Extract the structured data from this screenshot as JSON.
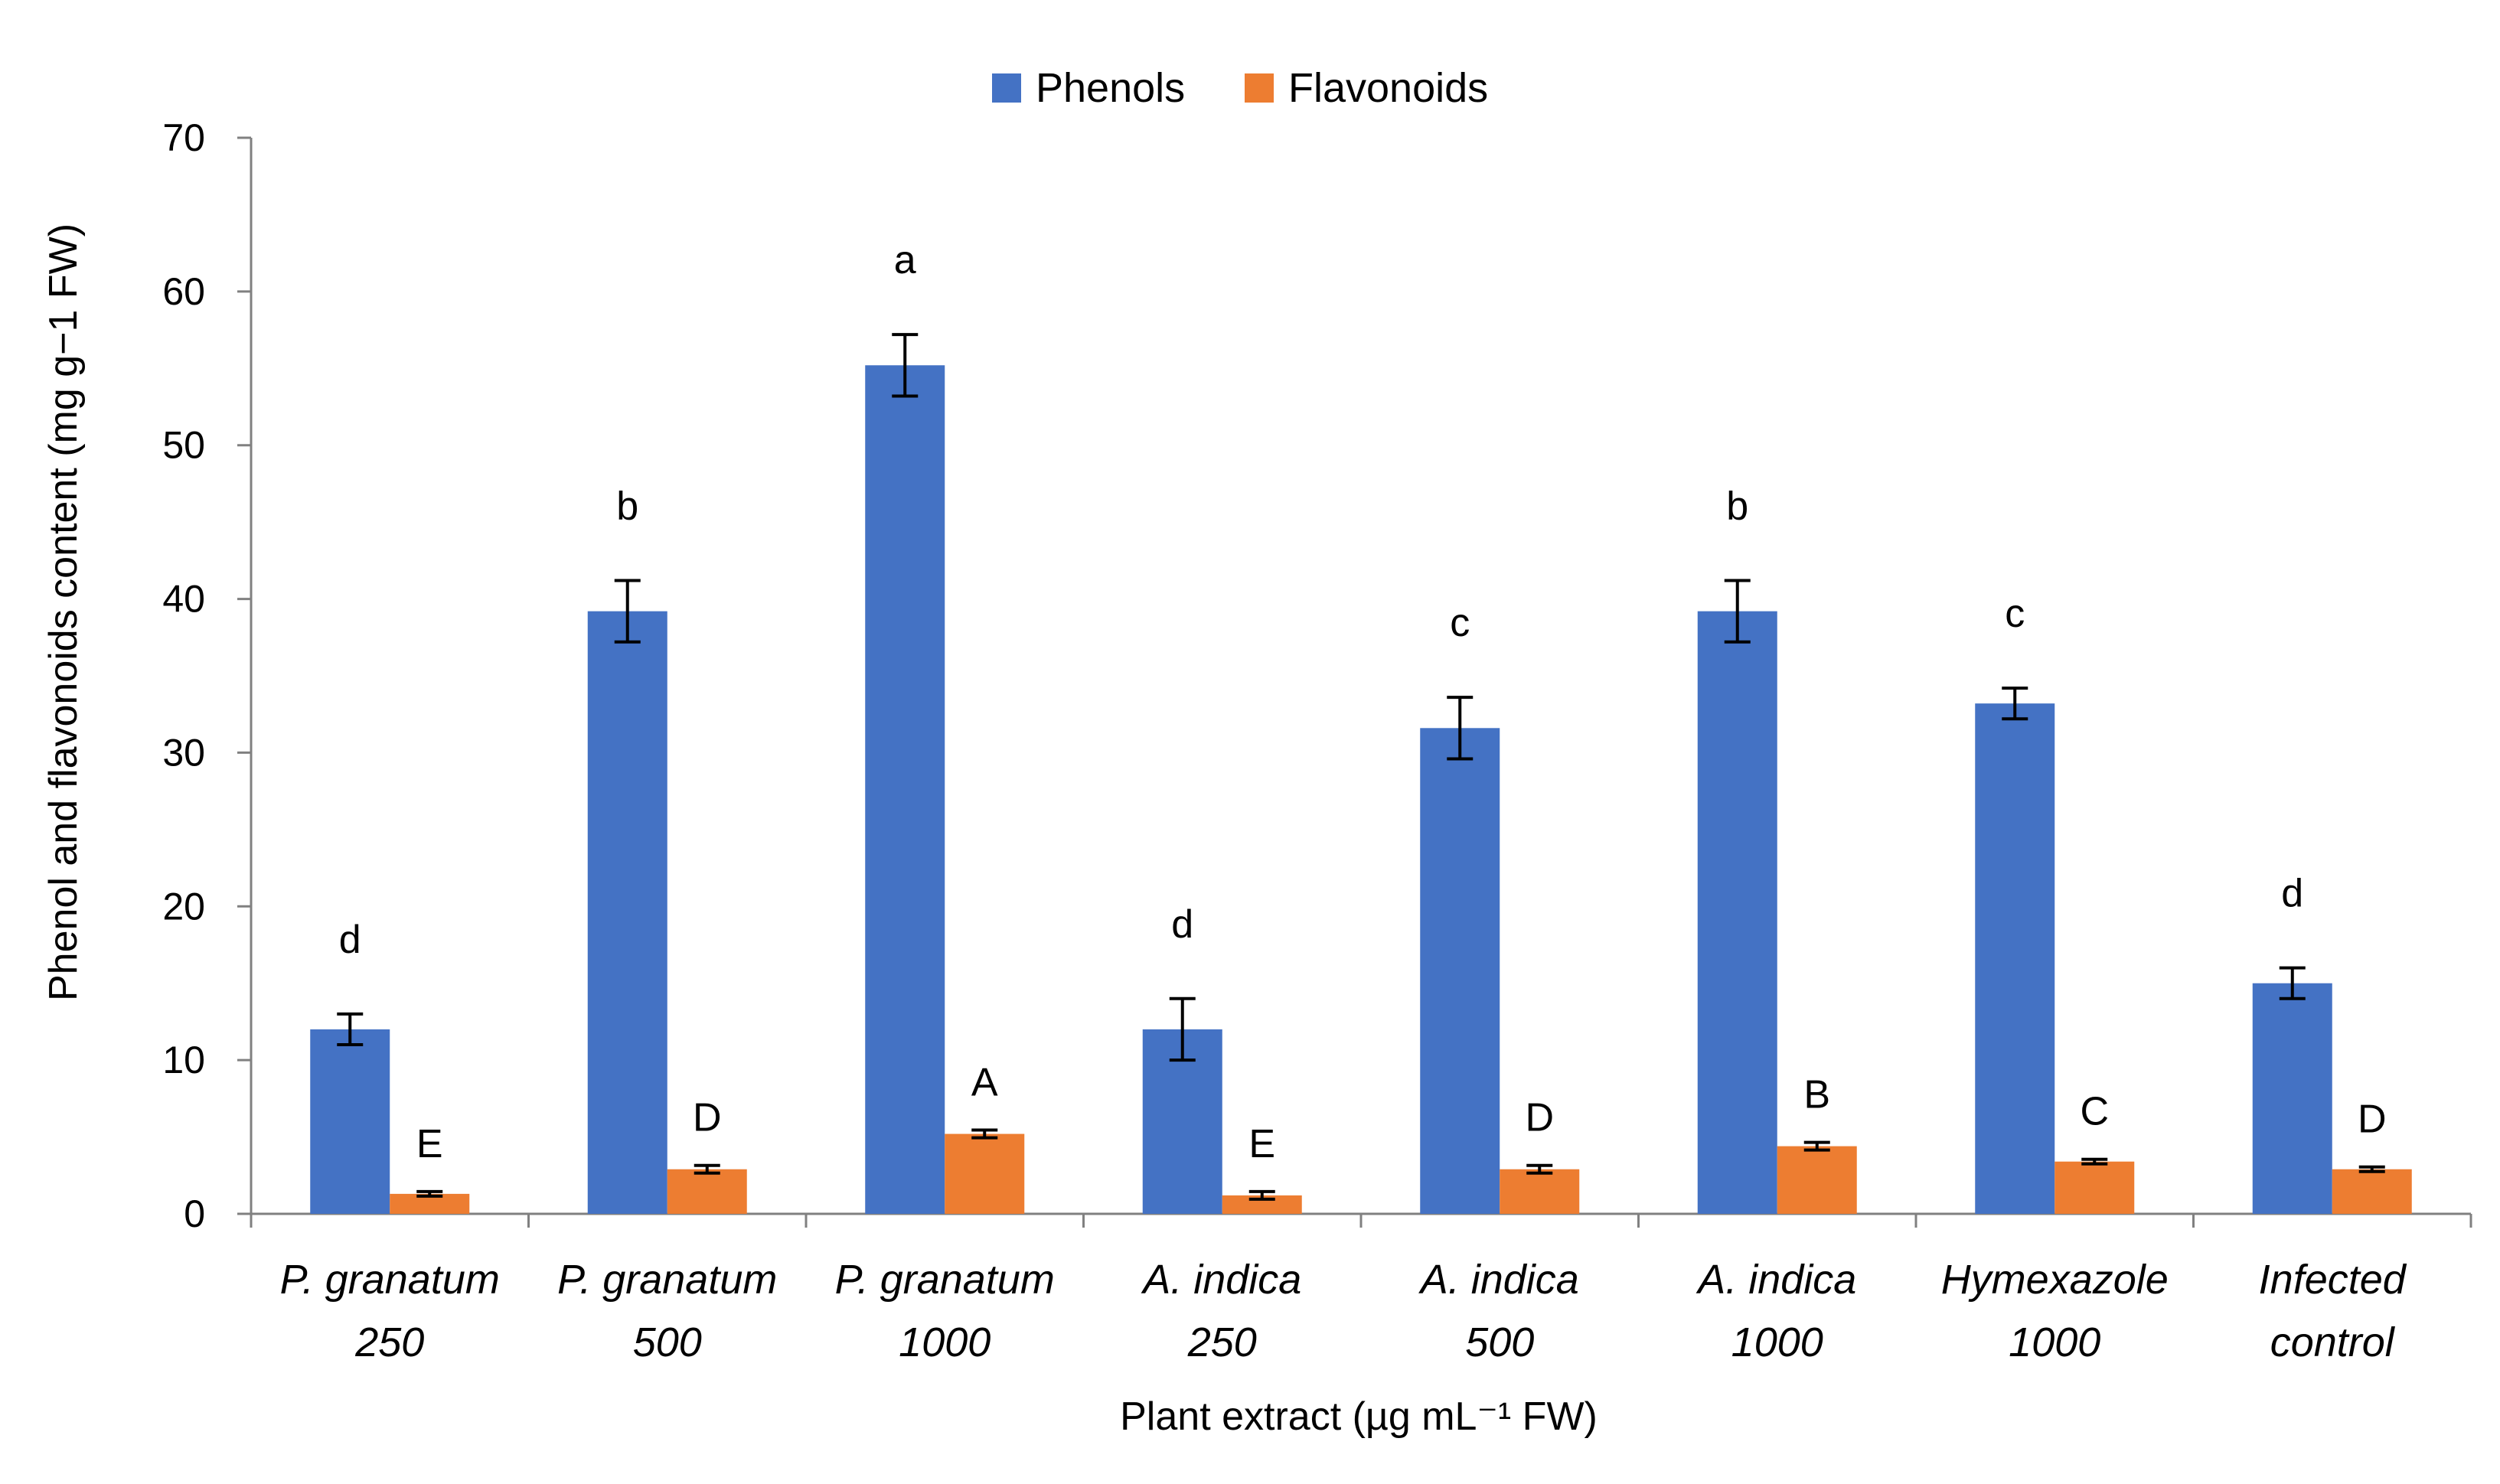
{
  "chart_data": {
    "type": "bar",
    "title": "",
    "xlabel": "Plant extract (µg mL⁻¹ FW)",
    "ylabel": "Phenol  and flavonoids content (mg g−1 FW)",
    "ylim": [
      0,
      70
    ],
    "yticks": [
      0,
      10,
      20,
      30,
      40,
      50,
      60,
      70
    ],
    "grid": false,
    "legend_position": "top-center",
    "categories": [
      [
        "P. granatum",
        "250"
      ],
      [
        "P. granatum",
        "500"
      ],
      [
        "P. granatum",
        "1000"
      ],
      [
        "A. indica",
        "250"
      ],
      [
        "A. indica",
        "500"
      ],
      [
        "A. indica",
        "1000"
      ],
      [
        "Hymexazole",
        "1000"
      ],
      [
        "Infected",
        "control"
      ]
    ],
    "series": [
      {
        "name": "Phenols",
        "color": "#4472C4",
        "values": [
          12,
          39.2,
          55.2,
          12,
          31.6,
          39.2,
          33.2,
          15
        ],
        "errors": [
          1,
          2,
          2,
          2,
          2,
          2,
          1,
          1
        ],
        "letters": [
          "d",
          "b",
          "a",
          "d",
          "c",
          "b",
          "c",
          "d"
        ]
      },
      {
        "name": "Flavonoids",
        "color": "#ED7D31",
        "values": [
          1.3,
          2.9,
          5.2,
          1.2,
          2.9,
          4.4,
          3.4,
          2.9
        ],
        "errors": [
          0.15,
          0.25,
          0.25,
          0.25,
          0.25,
          0.25,
          0.15,
          0.15
        ],
        "letters": [
          "E",
          "D",
          "A",
          "E",
          "D",
          "B",
          "C",
          "D"
        ]
      }
    ]
  }
}
